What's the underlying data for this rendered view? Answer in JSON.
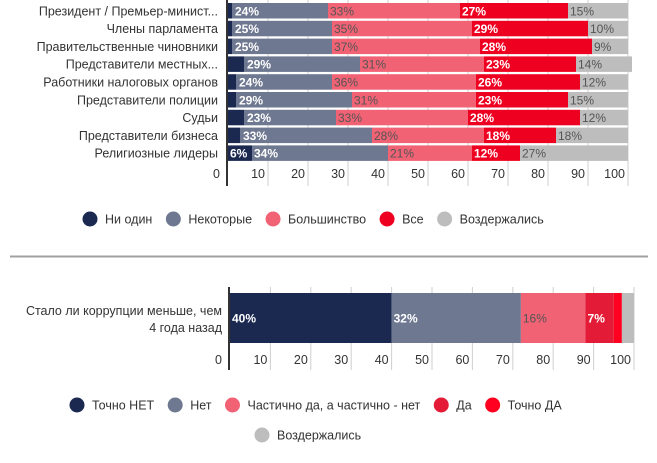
{
  "chart_data": [
    {
      "type": "bar",
      "orientation": "horizontal",
      "stacked": true,
      "title": "",
      "xlabel": "",
      "ylabel": "",
      "xlim": [
        0,
        100
      ],
      "x_ticks": [
        "0",
        "10",
        "20",
        "30",
        "40",
        "50",
        "60",
        "70",
        "80",
        "90",
        "100"
      ],
      "grid": true,
      "legend_position": "bottom",
      "categories": [
        "Президент / Премьер-минист...",
        "Члены парламента",
        "Правительственные чиновники",
        "Представители местных...",
        "Работники налоговых органов",
        "Представители полиции",
        "Судьи",
        "Представители бизнеса",
        "Религиозные лидеры"
      ],
      "series": [
        {
          "name": "Ни один",
          "color": "#1b2951",
          "values": [
            1,
            1,
            1,
            4,
            2,
            2,
            4,
            3,
            6
          ],
          "labels": [
            "",
            "",
            "",
            "",
            "",
            "",
            "",
            "",
            "6%"
          ]
        },
        {
          "name": "Некоторые",
          "color": "#6e7890",
          "values": [
            24,
            25,
            25,
            29,
            24,
            29,
            23,
            33,
            34
          ],
          "labels": [
            "24%",
            "25%",
            "25%",
            "29%",
            "24%",
            "29%",
            "23%",
            "33%",
            "34%"
          ]
        },
        {
          "name": "Большинство",
          "color": "#f06274",
          "values": [
            33,
            35,
            37,
            31,
            36,
            31,
            33,
            28,
            21
          ],
          "labels": [
            "33%",
            "35%",
            "37%",
            "31%",
            "36%",
            "31%",
            "33%",
            "28%",
            "21%"
          ]
        },
        {
          "name": "Все",
          "color": "#ee0021",
          "values": [
            27,
            29,
            28,
            23,
            26,
            23,
            28,
            18,
            12
          ],
          "labels": [
            "27%",
            "29%",
            "28%",
            "23%",
            "26%",
            "23%",
            "28%",
            "18%",
            "12%"
          ]
        },
        {
          "name": "Воздержались",
          "color": "#bdbdbd",
          "values": [
            15,
            10,
            9,
            14,
            12,
            15,
            12,
            18,
            27
          ],
          "labels": [
            "15%",
            "10%",
            "9%",
            "14%",
            "12%",
            "15%",
            "12%",
            "18%",
            "27%"
          ]
        }
      ]
    },
    {
      "type": "bar",
      "orientation": "horizontal",
      "stacked": true,
      "title": "",
      "xlabel": "",
      "ylabel": "",
      "xlim": [
        0,
        100
      ],
      "x_ticks": [
        "0",
        "10",
        "20",
        "30",
        "40",
        "50",
        "60",
        "70",
        "80",
        "90",
        "100"
      ],
      "grid": true,
      "legend_position": "bottom",
      "categories": [
        "Стало ли коррупции меньше, чем 4 года назад"
      ],
      "category_lines": [
        "Стало ли коррупции меньше, чем",
        "4 года назад"
      ],
      "series": [
        {
          "name": "Точно НЕТ",
          "color": "#1b2951",
          "values": [
            40
          ],
          "labels": [
            "40%"
          ]
        },
        {
          "name": "Нет",
          "color": "#6e7890",
          "values": [
            32
          ],
          "labels": [
            "32%"
          ]
        },
        {
          "name": "Частично да, а частично - нет",
          "color": "#f06274",
          "values": [
            16
          ],
          "labels": [
            "16%"
          ]
        },
        {
          "name": "Да",
          "color": "#e31b37",
          "values": [
            7
          ],
          "labels": [
            "7%"
          ]
        },
        {
          "name": "Точно ДА",
          "color": "#ff0020",
          "values": [
            2
          ],
          "labels": [
            ""
          ]
        },
        {
          "name": "Воздержались",
          "color": "#bdbdbd",
          "values": [
            3
          ],
          "labels": [
            ""
          ]
        }
      ]
    }
  ]
}
